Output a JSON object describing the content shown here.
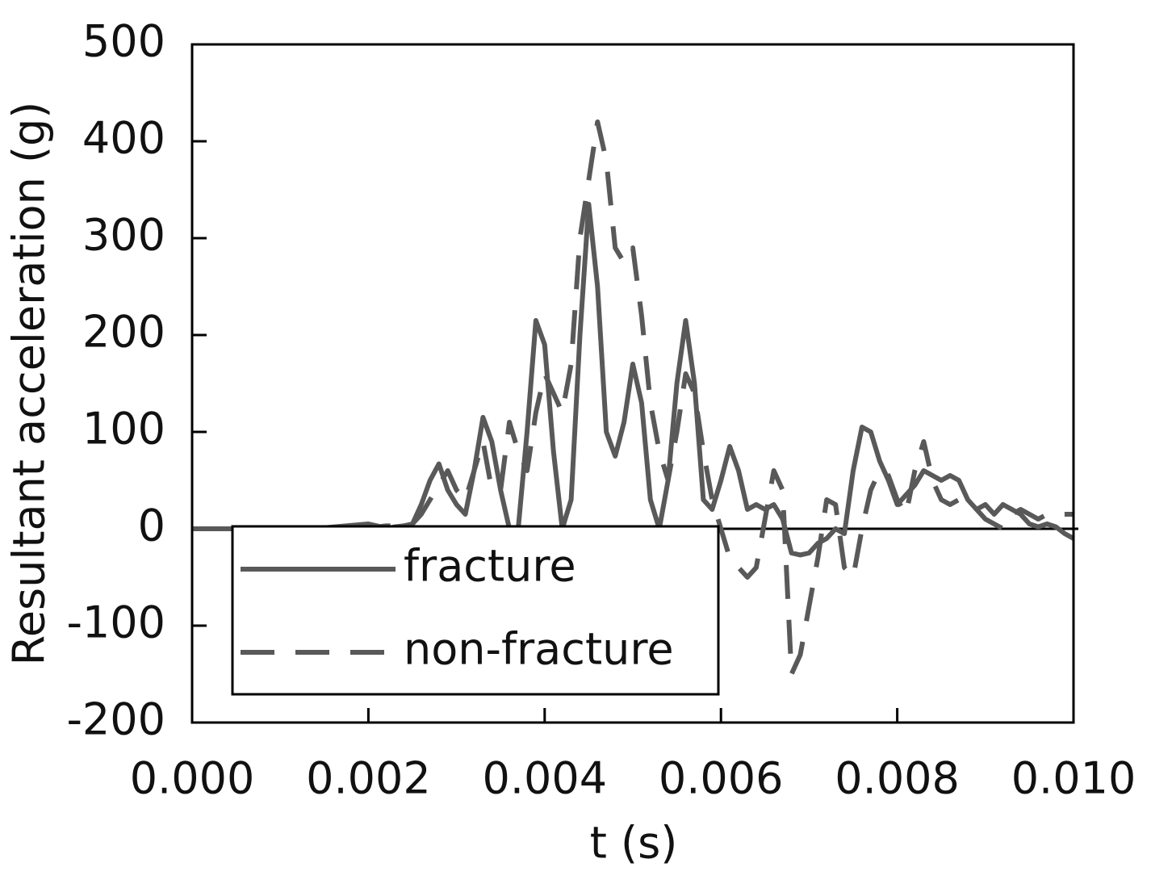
{
  "chart_data": {
    "type": "line",
    "x_label": "t (s)",
    "y_label": "Resultant acceleration (g)",
    "x": [
      0,
      0.0005,
      0.001,
      0.0015,
      0.002,
      0.0021,
      0.0022,
      0.0023,
      0.0024,
      0.0025,
      0.0026,
      0.0027,
      0.0028,
      0.0029,
      0.003,
      0.0031,
      0.0032,
      0.0033,
      0.0034,
      0.0035,
      0.0036,
      0.0037,
      0.0038,
      0.0039,
      0.004,
      0.0041,
      0.0042,
      0.0043,
      0.0044,
      0.0045,
      0.0046,
      0.0047,
      0.0048,
      0.0049,
      0.005,
      0.0051,
      0.0052,
      0.0053,
      0.0054,
      0.0055,
      0.0056,
      0.0057,
      0.0058,
      0.0059,
      0.006,
      0.0061,
      0.0062,
      0.0063,
      0.0064,
      0.0065,
      0.0066,
      0.0067,
      0.0068,
      0.0069,
      0.007,
      0.0071,
      0.0072,
      0.0073,
      0.0074,
      0.0075,
      0.0076,
      0.0077,
      0.0078,
      0.0079,
      0.008,
      0.0081,
      0.0082,
      0.0083,
      0.0084,
      0.0085,
      0.0086,
      0.0087,
      0.0088,
      0.0089,
      0.009,
      0.0091,
      0.0092,
      0.0093,
      0.0094,
      0.0095,
      0.0096,
      0.0097,
      0.0098,
      0.0099,
      0.01
    ],
    "series": [
      {
        "name": "fracture",
        "color": "#595959",
        "linestyle": "solid",
        "values": [
          0,
          0,
          0,
          1,
          5,
          3,
          0,
          2,
          3,
          5,
          25,
          50,
          67,
          40,
          25,
          15,
          60,
          115,
          90,
          40,
          0,
          0,
          100,
          215,
          190,
          80,
          0,
          30,
          200,
          335,
          250,
          100,
          75,
          110,
          170,
          130,
          30,
          0,
          50,
          150,
          215,
          150,
          30,
          20,
          50,
          85,
          60,
          20,
          25,
          20,
          25,
          10,
          -25,
          -27,
          -25,
          -15,
          -10,
          0,
          -5,
          60,
          105,
          100,
          70,
          50,
          25,
          35,
          45,
          60,
          55,
          50,
          55,
          50,
          30,
          20,
          25,
          15,
          25,
          20,
          15,
          5,
          2,
          5,
          2,
          -5,
          -10
        ]
      },
      {
        "name": "non-fracture",
        "color": "#595959",
        "linestyle": "dashed",
        "values": [
          0,
          0,
          0,
          0,
          0,
          2,
          3,
          3,
          4,
          5,
          15,
          30,
          45,
          60,
          40,
          30,
          60,
          90,
          40,
          40,
          110,
          80,
          60,
          120,
          160,
          140,
          120,
          170,
          300,
          360,
          420,
          380,
          290,
          275,
          290,
          220,
          130,
          80,
          50,
          100,
          160,
          140,
          80,
          30,
          0,
          -30,
          -40,
          -50,
          -40,
          10,
          60,
          40,
          -150,
          -130,
          -80,
          -30,
          30,
          25,
          -40,
          -50,
          0,
          40,
          60,
          55,
          30,
          15,
          60,
          90,
          50,
          30,
          25,
          30,
          30,
          20,
          10,
          5,
          0,
          15,
          20,
          15,
          10,
          15,
          15,
          15,
          15
        ]
      }
    ],
    "xlim": [
      0,
      0.01
    ],
    "xticks": [
      {
        "value": 0,
        "label": "0.000"
      },
      {
        "value": 0.002,
        "label": "0.002"
      },
      {
        "value": 0.004,
        "label": "0.004"
      },
      {
        "value": 0.006,
        "label": "0.006"
      },
      {
        "value": 0.008,
        "label": "0.008"
      },
      {
        "value": 0.01,
        "label": "0.010"
      }
    ],
    "ylim": [
      -200,
      500
    ],
    "yticks": [
      -200,
      -100,
      0,
      100,
      200,
      300,
      400,
      500
    ],
    "legend": "lower left",
    "grid": false
  }
}
